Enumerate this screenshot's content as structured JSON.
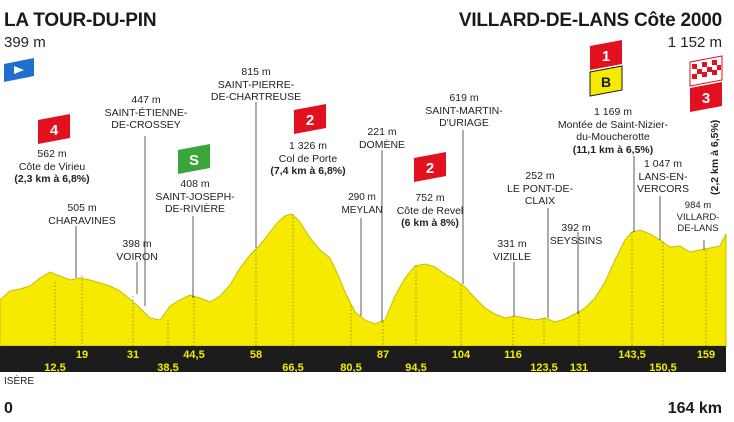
{
  "start": {
    "name": "LA TOUR-DU-PIN",
    "altitude": "399 m"
  },
  "finish": {
    "name": "VILLARD-DE-LANS Côte 2000",
    "altitude": "1 152 m"
  },
  "region": "ISÈRE",
  "distance_start": "0",
  "distance_end": "164 km",
  "colors": {
    "profile": "#f5ea00",
    "axis_band": "#1c1c1c",
    "climb_badge": "#e3101f",
    "sprint_badge": "#3aa53a",
    "bonus_badge": "#f5ea00",
    "start_flag": "#1f6fd1"
  },
  "km_markers": [
    "12,5",
    "19",
    "31",
    "38,5",
    "44,5",
    "58",
    "66,5",
    "80,5",
    "87",
    "94,5",
    "104",
    "116",
    "123,5",
    "131",
    "143,5",
    "150,5",
    "159"
  ],
  "labels": [
    {
      "alt": "562 m",
      "name": "Côte de Virieu",
      "detail": "(2,3 km à 6,8%)"
    },
    {
      "alt": "505 m",
      "name": "CHARAVINES"
    },
    {
      "alt": "398 m",
      "name": "VOIRON"
    },
    {
      "alt": "447 m",
      "name": "SAINT-ÉTIENNE-",
      "name2": "DE-CROSSEY"
    },
    {
      "alt": "408 m",
      "name": "SAINT-JOSEPH-",
      "name2": "DE-RIVIÈRE"
    },
    {
      "alt": "815 m",
      "name": "SAINT-PIERRE-",
      "name2": "DE-CHARTREUSE"
    },
    {
      "alt": "1 326 m",
      "name": "Col de Porte",
      "detail": "(7,4 km à 6,8%)"
    },
    {
      "alt": "290 m",
      "name": "MEYLAN"
    },
    {
      "alt": "221 m",
      "name": "DOMÈNE"
    },
    {
      "alt": "752 m",
      "name": "Côte de Revel",
      "detail": "(6 km à 8%)"
    },
    {
      "alt": "619 m",
      "name": "SAINT-MARTIN-",
      "name2": "D'URIAGE"
    },
    {
      "alt": "331 m",
      "name": "VIZILLE"
    },
    {
      "alt": "252 m",
      "name": "LE PONT-DE-",
      "name2": "CLAIX"
    },
    {
      "alt": "392 m",
      "name": "SEYSSINS"
    },
    {
      "alt": "1 169 m",
      "name": "Montée de Saint-Nizier-",
      "name2": "du-Moucherotte",
      "detail": "(11,1 km à 6,5%)"
    },
    {
      "alt": "1 047 m",
      "name": "LANS-EN-",
      "name2": "VERCORS"
    },
    {
      "alt": "984 m",
      "name": "VILLARD-",
      "name2": "DE-LANS"
    },
    {
      "detail": "(2,2 km à 6,5%)"
    }
  ],
  "badges": {
    "cat4": "4",
    "cat2a": "2",
    "cat2b": "2",
    "sprint": "S",
    "cat1": "1",
    "bonus": "B",
    "cat3": "3"
  }
}
